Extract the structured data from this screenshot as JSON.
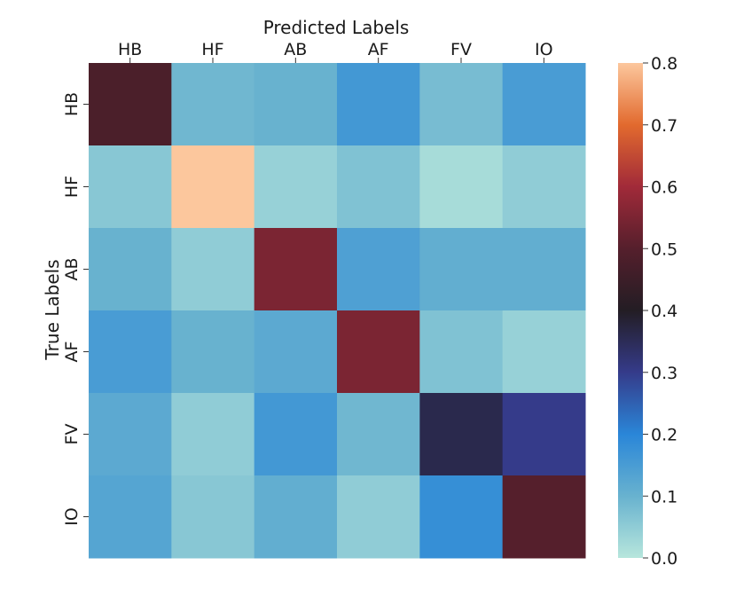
{
  "chart_data": {
    "type": "heatmap",
    "title": "",
    "xlabel": "Predicted Labels",
    "ylabel": "True Labels",
    "x_categories": [
      "HB",
      "HF",
      "AB",
      "AF",
      "FV",
      "IO"
    ],
    "y_categories": [
      "HB",
      "HF",
      "AB",
      "AF",
      "FV",
      "IO"
    ],
    "values": [
      [
        0.48,
        0.09,
        0.1,
        0.16,
        0.08,
        0.15
      ],
      [
        0.06,
        0.8,
        0.04,
        0.07,
        0.02,
        0.05
      ],
      [
        0.1,
        0.05,
        0.55,
        0.14,
        0.11,
        0.11
      ],
      [
        0.15,
        0.1,
        0.12,
        0.55,
        0.07,
        0.04
      ],
      [
        0.12,
        0.05,
        0.16,
        0.09,
        0.36,
        0.3
      ],
      [
        0.13,
        0.06,
        0.11,
        0.05,
        0.18,
        0.5
      ]
    ],
    "colorbar": {
      "min": 0.0,
      "max": 0.8,
      "ticks": [
        "0.0",
        "0.1",
        "0.2",
        "0.3",
        "0.4",
        "0.5",
        "0.6",
        "0.7",
        "0.8"
      ],
      "colormap": [
        "#b7e6dc",
        "#68b2cf",
        "#2a86d8",
        "#353b8a",
        "#231d24",
        "#551f2c",
        "#a12a39",
        "#e26a2e",
        "#fcc79d"
      ]
    },
    "x_axis_position": "top",
    "grid": false
  }
}
